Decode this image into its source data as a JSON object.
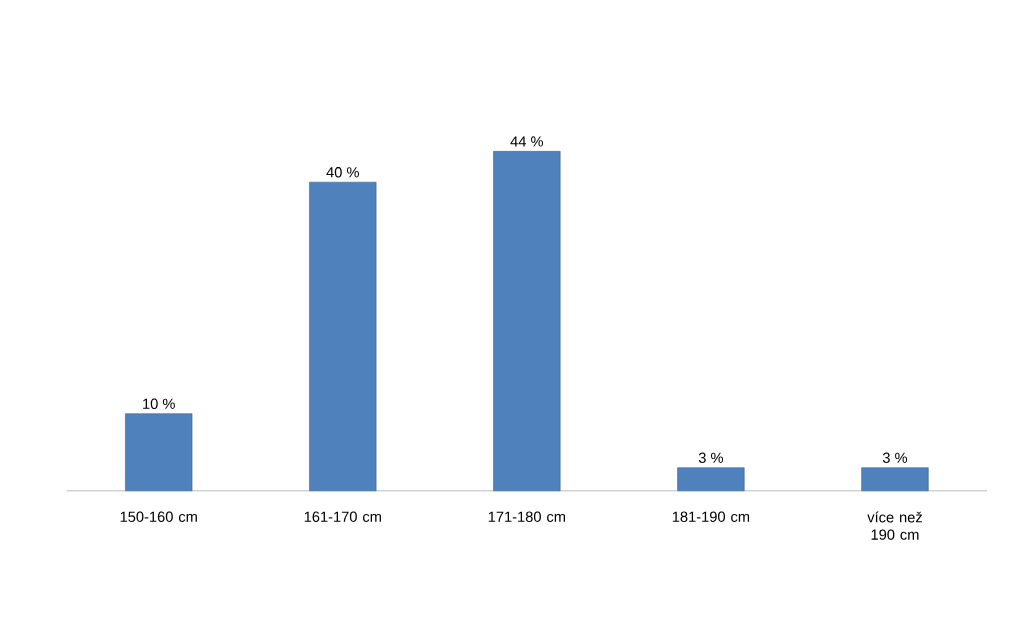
{
  "chart_data": {
    "type": "bar",
    "categories": [
      "150-160 cm",
      "161-170 cm",
      "171-180 cm",
      "181-190 cm",
      "více než 190 cm"
    ],
    "values": [
      10,
      40,
      44,
      3,
      3
    ],
    "value_labels": [
      "10 %",
      "40 %",
      "44 %",
      "3 %",
      "3 %"
    ],
    "color": "#4f81bd"
  }
}
